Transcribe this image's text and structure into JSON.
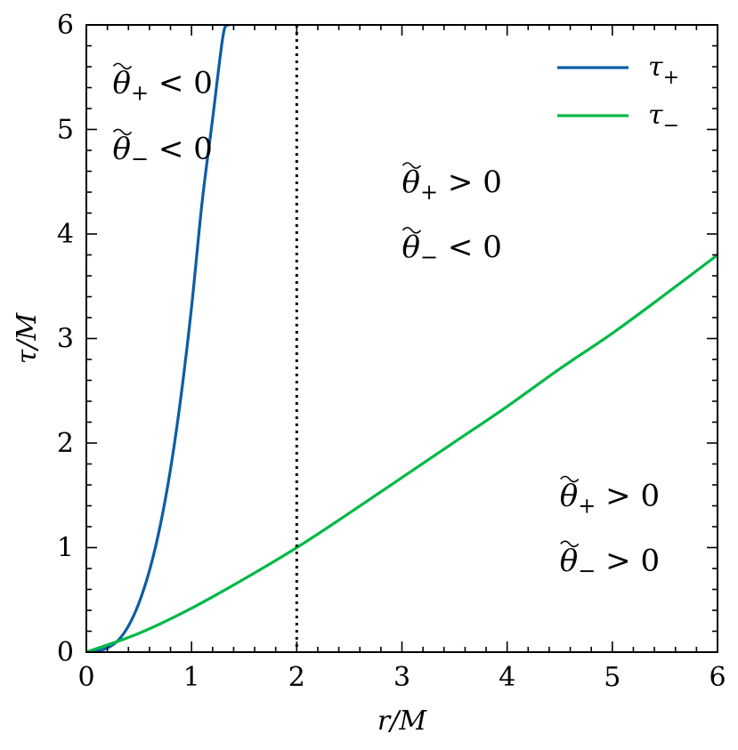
{
  "chart_data": {
    "type": "line",
    "xlabel": "r/M",
    "ylabel": "τ/M",
    "xlim": [
      0,
      6
    ],
    "ylim": [
      0,
      6
    ],
    "x_ticks": [
      "0",
      "1",
      "2",
      "3",
      "4",
      "5",
      "6"
    ],
    "y_ticks": [
      "0",
      "1",
      "2",
      "3",
      "4",
      "5",
      "6"
    ],
    "legend_position": "top-right",
    "series": [
      {
        "name": "τ+",
        "color": "#0C5DA5",
        "x": [
          0,
          0.1,
          0.2,
          0.3,
          0.4,
          0.5,
          0.6,
          0.7,
          0.8,
          0.9,
          1.0,
          1.1,
          1.2,
          1.3,
          1.35
        ],
        "y": [
          0,
          0.01,
          0.04,
          0.11,
          0.25,
          0.47,
          0.78,
          1.2,
          1.75,
          2.45,
          3.3,
          4.3,
          5.1,
          5.9,
          6.0
        ]
      },
      {
        "name": "τ−",
        "color": "#00B945",
        "x": [
          0,
          0.5,
          1,
          1.5,
          2,
          2.5,
          3,
          3.5,
          4,
          4.5,
          5,
          5.5,
          6
        ],
        "y": [
          0,
          0.18,
          0.42,
          0.7,
          1.0,
          1.33,
          1.67,
          2.01,
          2.35,
          2.71,
          3.05,
          3.42,
          3.8
        ]
      }
    ],
    "vline": {
      "x": 2,
      "style": "dotted",
      "color": "#000000"
    },
    "annotations": [
      {
        "id": "region-left",
        "x": 0.25,
        "lines": [
          {
            "sub": "+",
            "op": "<",
            "val": "0",
            "y": 5.35
          },
          {
            "sub": "−",
            "op": "<",
            "val": "0",
            "y": 4.72
          }
        ]
      },
      {
        "id": "region-middle",
        "x": 3.0,
        "lines": [
          {
            "sub": "+",
            "op": ">",
            "val": "0",
            "y": 4.4
          },
          {
            "sub": "−",
            "op": "<",
            "val": "0",
            "y": 3.78
          }
        ]
      },
      {
        "id": "region-lower-right",
        "x": 4.5,
        "lines": [
          {
            "sub": "+",
            "op": ">",
            "val": "0",
            "y": 1.4
          },
          {
            "sub": "−",
            "op": ">",
            "val": "0",
            "y": 0.78
          }
        ]
      }
    ]
  }
}
